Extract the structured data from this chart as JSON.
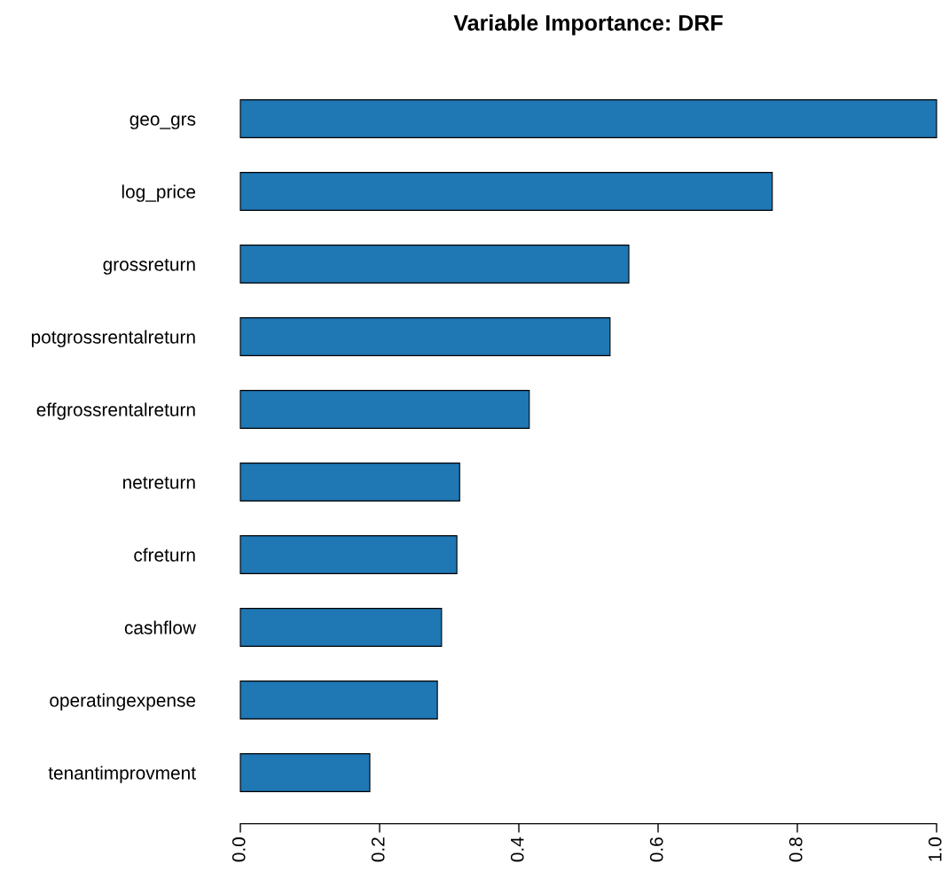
{
  "chart_data": {
    "type": "bar",
    "orientation": "horizontal",
    "title": "Variable Importance: DRF",
    "categories": [
      "geo_grs",
      "log_price",
      "grossreturn",
      "potgrossrentalreturn",
      "effgrossrentalreturn",
      "netreturn",
      "cfreturn",
      "cashflow",
      "operatingexpense",
      "tenantimprovment"
    ],
    "values": [
      1.0,
      0.764,
      0.558,
      0.531,
      0.415,
      0.315,
      0.311,
      0.289,
      0.283,
      0.186
    ],
    "color": "#1f77b4",
    "xlim": [
      0,
      1
    ],
    "xticks": [
      {
        "value": 0,
        "label": "0.0"
      },
      {
        "value": 0.2,
        "label": "0.2"
      },
      {
        "value": 0.4,
        "label": "0.4"
      },
      {
        "value": 0.6,
        "label": "0.6"
      },
      {
        "value": 0.8,
        "label": "0.8"
      },
      {
        "value": 1,
        "label": "1.0"
      }
    ],
    "grid": false,
    "legend": false
  }
}
